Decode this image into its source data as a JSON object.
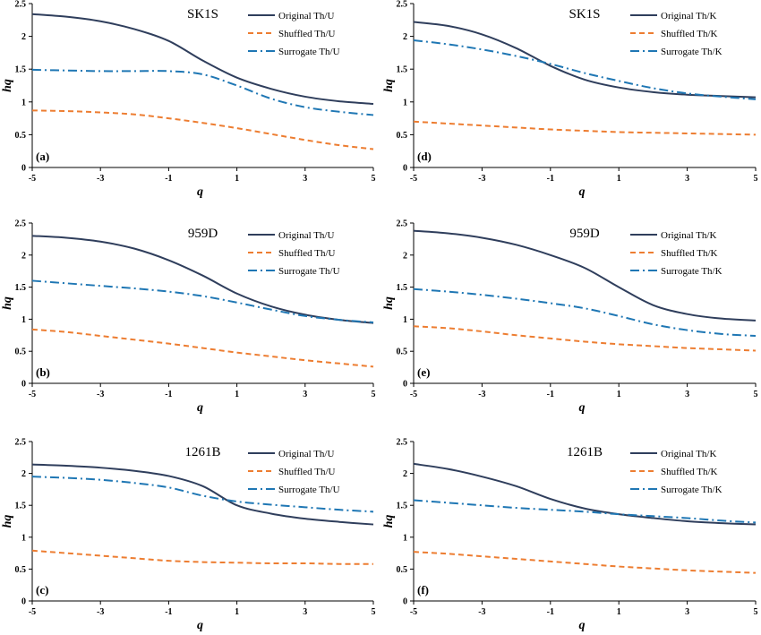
{
  "colors": {
    "original": "#2f3e5c",
    "shuffled": "#ed7d31",
    "surrogate": "#1f77b4",
    "axis": "#000000"
  },
  "chart_data": [
    {
      "type": "line",
      "panel": "(a)",
      "title": "SK1S",
      "xlabel": "q",
      "ylabel": "hq",
      "xlim": [
        -5,
        5
      ],
      "ylim": [
        0,
        2.5
      ],
      "xticks": [
        -5,
        -3,
        -1,
        1,
        3,
        5
      ],
      "yticks": [
        0,
        0.5,
        1,
        1.5,
        2,
        2.5
      ],
      "x": [
        -5,
        -4,
        -3,
        -2,
        -1,
        0,
        1,
        2,
        3,
        4,
        5
      ],
      "series": [
        {
          "name": "Original Th/U",
          "style": "solid",
          "values": [
            2.34,
            2.3,
            2.23,
            2.11,
            1.93,
            1.63,
            1.37,
            1.2,
            1.08,
            1.01,
            0.97
          ]
        },
        {
          "name": "Shuffled Th/U",
          "style": "dashed",
          "values": [
            0.87,
            0.86,
            0.84,
            0.81,
            0.75,
            0.68,
            0.6,
            0.51,
            0.42,
            0.34,
            0.28
          ]
        },
        {
          "name": "Surrogate Th/U",
          "style": "dashdot",
          "values": [
            1.49,
            1.48,
            1.47,
            1.47,
            1.47,
            1.42,
            1.25,
            1.05,
            0.92,
            0.85,
            0.8
          ]
        }
      ],
      "legend": "top-right"
    },
    {
      "type": "line",
      "panel": "(d)",
      "title": "SK1S",
      "xlabel": "q",
      "ylabel": "hq",
      "xlim": [
        -5,
        5
      ],
      "ylim": [
        0,
        2.5
      ],
      "xticks": [
        -5,
        -3,
        -1,
        1,
        3,
        5
      ],
      "yticks": [
        0,
        0.5,
        1,
        1.5,
        2,
        2.5
      ],
      "x": [
        -5,
        -4,
        -3,
        -2,
        -1,
        0,
        1,
        2,
        3,
        4,
        5
      ],
      "series": [
        {
          "name": "Original Th/K",
          "style": "solid",
          "values": [
            2.22,
            2.16,
            2.03,
            1.82,
            1.55,
            1.34,
            1.22,
            1.15,
            1.11,
            1.09,
            1.07
          ]
        },
        {
          "name": "Shuffled Th/K",
          "style": "dashed",
          "values": [
            0.7,
            0.67,
            0.64,
            0.61,
            0.58,
            0.56,
            0.54,
            0.53,
            0.52,
            0.51,
            0.5
          ]
        },
        {
          "name": "Surrogate Th/K",
          "style": "dashdot",
          "values": [
            1.94,
            1.88,
            1.8,
            1.7,
            1.58,
            1.44,
            1.32,
            1.21,
            1.13,
            1.08,
            1.04
          ]
        }
      ],
      "legend": "top-right"
    },
    {
      "type": "line",
      "panel": "(b)",
      "title": "959D",
      "xlabel": "q",
      "ylabel": "hq",
      "xlim": [
        -5,
        5
      ],
      "ylim": [
        0,
        2.5
      ],
      "xticks": [
        -5,
        -3,
        -1,
        1,
        3,
        5
      ],
      "yticks": [
        0,
        0.5,
        1,
        1.5,
        2,
        2.5
      ],
      "x": [
        -5,
        -4,
        -3,
        -2,
        -1,
        0,
        1,
        2,
        3,
        4,
        5
      ],
      "series": [
        {
          "name": "Original Th/U",
          "style": "solid",
          "values": [
            2.3,
            2.27,
            2.21,
            2.1,
            1.92,
            1.68,
            1.4,
            1.2,
            1.07,
            0.99,
            0.94
          ]
        },
        {
          "name": "Shuffled Th/U",
          "style": "dashed",
          "values": [
            0.84,
            0.8,
            0.74,
            0.68,
            0.62,
            0.55,
            0.48,
            0.42,
            0.36,
            0.31,
            0.26
          ]
        },
        {
          "name": "Surrogate Th/U",
          "style": "dashdot",
          "values": [
            1.6,
            1.56,
            1.52,
            1.48,
            1.43,
            1.36,
            1.26,
            1.15,
            1.05,
            0.99,
            0.95
          ]
        }
      ],
      "legend": "top-right"
    },
    {
      "type": "line",
      "panel": "(e)",
      "title": "959D",
      "xlabel": "q",
      "ylabel": "hq",
      "xlim": [
        -5,
        5
      ],
      "ylim": [
        0,
        2.5
      ],
      "xticks": [
        -5,
        -3,
        -1,
        1,
        3,
        5
      ],
      "yticks": [
        0,
        0.5,
        1,
        1.5,
        2,
        2.5
      ],
      "x": [
        -5,
        -4,
        -3,
        -2,
        -1,
        0,
        1,
        2,
        3,
        4,
        5
      ],
      "series": [
        {
          "name": "Original Th/K",
          "style": "solid",
          "values": [
            2.38,
            2.34,
            2.27,
            2.16,
            2.0,
            1.8,
            1.5,
            1.22,
            1.08,
            1.01,
            0.98
          ]
        },
        {
          "name": "Shuffled Th/K",
          "style": "dashed",
          "values": [
            0.89,
            0.86,
            0.81,
            0.75,
            0.7,
            0.65,
            0.61,
            0.58,
            0.55,
            0.53,
            0.51
          ]
        },
        {
          "name": "Surrogate Th/K",
          "style": "dashdot",
          "values": [
            1.47,
            1.43,
            1.38,
            1.32,
            1.25,
            1.17,
            1.05,
            0.92,
            0.83,
            0.77,
            0.74
          ]
        }
      ],
      "legend": "top-right"
    },
    {
      "type": "line",
      "panel": "(c)",
      "title": "1261B",
      "xlabel": "q",
      "ylabel": "hq",
      "xlim": [
        -5,
        5
      ],
      "ylim": [
        0,
        2.5
      ],
      "xticks": [
        -5,
        -3,
        -1,
        1,
        3,
        5
      ],
      "yticks": [
        0,
        0.5,
        1,
        1.5,
        2,
        2.5
      ],
      "x": [
        -5,
        -4,
        -3,
        -2,
        -1,
        0,
        1,
        2,
        3,
        4,
        5
      ],
      "series": [
        {
          "name": "Original Th/U",
          "style": "solid",
          "values": [
            2.14,
            2.12,
            2.09,
            2.04,
            1.96,
            1.8,
            1.5,
            1.37,
            1.29,
            1.24,
            1.2
          ]
        },
        {
          "name": "Shuffled Th/U",
          "style": "dashed",
          "values": [
            0.79,
            0.75,
            0.71,
            0.67,
            0.63,
            0.61,
            0.6,
            0.59,
            0.59,
            0.58,
            0.58
          ]
        },
        {
          "name": "Surrogate Th/U",
          "style": "dashdot",
          "values": [
            1.95,
            1.93,
            1.9,
            1.85,
            1.78,
            1.65,
            1.56,
            1.51,
            1.47,
            1.43,
            1.4
          ]
        }
      ],
      "legend": "top-right"
    },
    {
      "type": "line",
      "panel": "(f)",
      "title": "1261B",
      "xlabel": "q",
      "ylabel": "hq",
      "xlim": [
        -5,
        5
      ],
      "ylim": [
        0,
        2.5
      ],
      "xticks": [
        -5,
        -3,
        -1,
        1,
        3,
        5
      ],
      "yticks": [
        0,
        0.5,
        1,
        1.5,
        2,
        2.5
      ],
      "x": [
        -5,
        -4,
        -3,
        -2,
        -1,
        0,
        1,
        2,
        3,
        4,
        5
      ],
      "series": [
        {
          "name": "Original Th/K",
          "style": "solid",
          "values": [
            2.15,
            2.07,
            1.95,
            1.8,
            1.6,
            1.45,
            1.36,
            1.3,
            1.25,
            1.22,
            1.2
          ]
        },
        {
          "name": "Shuffled Th/K",
          "style": "dashed",
          "values": [
            0.77,
            0.74,
            0.7,
            0.66,
            0.62,
            0.58,
            0.54,
            0.51,
            0.48,
            0.46,
            0.44
          ]
        },
        {
          "name": "Surrogate Th/K",
          "style": "dashdot",
          "values": [
            1.58,
            1.54,
            1.5,
            1.46,
            1.43,
            1.4,
            1.36,
            1.33,
            1.3,
            1.26,
            1.23
          ]
        }
      ],
      "legend": "top-right"
    }
  ]
}
